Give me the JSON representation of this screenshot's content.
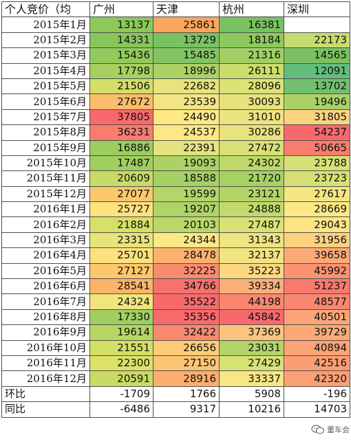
{
  "header": [
    "个人竞价（均",
    "广州",
    "天津",
    "杭州",
    "深圳"
  ],
  "rows": [
    {
      "label": "2015年1月",
      "values": [
        13137,
        25861,
        16381,
        null
      ],
      "colors": [
        "#8cc85a",
        "#fca55f",
        "#78c262",
        null
      ]
    },
    {
      "label": "2015年2月",
      "values": [
        14331,
        13729,
        18184,
        22173
      ],
      "colors": [
        "#88c65c",
        "#78c262",
        "#8ec95d",
        "#c7dc6e"
      ]
    },
    {
      "label": "2015年3月",
      "values": [
        15436,
        15485,
        21316,
        14565
      ],
      "colors": [
        "#92ca5d",
        "#83c562",
        "#a2cf63",
        "#7ac161"
      ]
    },
    {
      "label": "2015年4月",
      "values": [
        17798,
        18996,
        26111,
        12091
      ],
      "colors": [
        "#a6d060",
        "#aad265",
        "#c9de6c",
        "#63be7b"
      ]
    },
    {
      "label": "2015年5月",
      "values": [
        21506,
        22682,
        28096,
        13702
      ],
      "colors": [
        "#d3df66",
        "#e8e37e",
        "#dce276",
        "#72c06f"
      ]
    },
    {
      "label": "2015年6月",
      "values": [
        27672,
        23539,
        30093,
        19496
      ],
      "colors": [
        "#fbbd6a",
        "#f4e584",
        "#e7e37c",
        "#aad267"
      ]
    },
    {
      "label": "2015年7月",
      "values": [
        37805,
        24490,
        31010,
        31805
      ],
      "colors": [
        "#f8696b",
        "#fde885",
        "#ece47f",
        "#fcd27f"
      ]
    },
    {
      "label": "2015年8月",
      "values": [
        36231,
        24537,
        30286,
        54237
      ],
      "colors": [
        "#f97c6e",
        "#fde885",
        "#e8e37d",
        "#f8696b"
      ]
    },
    {
      "label": "2015年9月",
      "values": [
        16886,
        22391,
        27472,
        50665
      ],
      "colors": [
        "#9ccd5f",
        "#e4e37e",
        "#d8e173",
        "#f97d6e"
      ]
    },
    {
      "label": "2015年10月",
      "values": [
        17487,
        19093,
        24302,
        23788
      ],
      "colors": [
        "#a1ce60",
        "#acd266",
        "#bcd96a",
        "#d6e075"
      ]
    },
    {
      "label": "2015年11月",
      "values": [
        20609,
        18588,
        21720,
        23723
      ],
      "colors": [
        "#c8db64",
        "#a5d064",
        "#a6d164",
        "#d6e075"
      ]
    },
    {
      "label": "2015年12月",
      "values": [
        27077,
        19599,
        23121,
        27617
      ],
      "colors": [
        "#fcc86c",
        "#b4d567",
        "#b3d568",
        "#f5e583"
      ]
    },
    {
      "label": "2016年1月",
      "values": [
        25727,
        19207,
        24888,
        28669
      ],
      "colors": [
        "#fee27f",
        "#aed366",
        "#c1da6b",
        "#fde885"
      ]
    },
    {
      "label": "2016年2月",
      "values": [
        21884,
        20103,
        27487,
        29043
      ],
      "colors": [
        "#d6e067",
        "#bad768",
        "#d8e173",
        "#fde485"
      ]
    },
    {
      "label": "2016年3月",
      "values": [
        23315,
        24344,
        31343,
        31956
      ],
      "colors": [
        "#e8e37a",
        "#fce885",
        "#eee480",
        "#fcd27f"
      ]
    },
    {
      "label": "2016年4月",
      "values": [
        25701,
        28478,
        32137,
        39658
      ],
      "colors": [
        "#fee07e",
        "#fbb26f",
        "#f3e482",
        "#fbaa77"
      ]
    },
    {
      "label": "2016年5月",
      "values": [
        27127,
        32225,
        35223,
        45992
      ],
      "colors": [
        "#fcc86c",
        "#f98b70",
        "#fdd881",
        "#fa9273"
      ]
    },
    {
      "label": "2016年6月",
      "values": [
        28541,
        34766,
        39334,
        51237
      ],
      "colors": [
        "#fbb468",
        "#f8716c",
        "#fbb07a",
        "#f97a6d"
      ]
    },
    {
      "label": "2016年7月",
      "values": [
        24324,
        35522,
        44198,
        48577
      ],
      "colors": [
        "#f2e47c",
        "#f8696b",
        "#f9876f",
        "#f98770"
      ]
    },
    {
      "label": "2016年8月",
      "values": [
        17330,
        35356,
        45842,
        40501
      ],
      "colors": [
        "#a0ce60",
        "#f86b6b",
        "#f8696b",
        "#fba577"
      ]
    },
    {
      "label": "2016年9月",
      "values": [
        19614,
        32422,
        37369,
        39729
      ],
      "colors": [
        "#b7d662",
        "#f98a70",
        "#fcc57e",
        "#fbaa77"
      ]
    },
    {
      "label": "2016年10月",
      "values": [
        21551,
        26656,
        23031,
        40894
      ],
      "colors": [
        "#d3df66",
        "#fdcc78",
        "#b2d468",
        "#fba476"
      ]
    },
    {
      "label": "2016年11月",
      "values": [
        22300,
        27150,
        27429,
        42516
      ],
      "colors": [
        "#dde167",
        "#fcc576",
        "#d8e173",
        "#fb9e75"
      ]
    },
    {
      "label": "2016年12月",
      "values": [
        20591,
        28916,
        33337,
        42320
      ],
      "colors": [
        "#c8db64",
        "#fcae6e",
        "#f7e683",
        "#fb9f75"
      ]
    }
  ],
  "footer": [
    {
      "label": "环比",
      "values": [
        "-1709",
        "1766",
        "5908",
        "-196"
      ]
    },
    {
      "label": "同比",
      "values": [
        "-6486",
        "9317",
        "10216",
        "14703"
      ]
    }
  ],
  "watermark": {
    "text": "董车会",
    "icon": "wechat-logo-icon"
  }
}
